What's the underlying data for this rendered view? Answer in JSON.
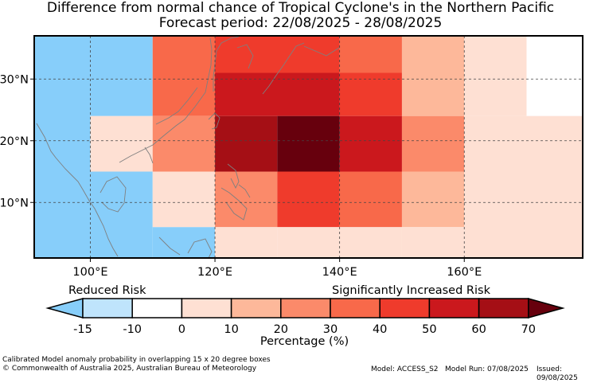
{
  "title_line1": "Difference from normal chance of Tropical Cyclone's in the Northern Pacific",
  "title_line2": "Forecast period: 22/08/2025 - 28/08/2025",
  "map": {
    "lon_range": [
      91,
      179
    ],
    "lat_range": [
      1,
      37
    ],
    "lon_ticks": [
      {
        "value": 100,
        "label": "100°E"
      },
      {
        "value": 120,
        "label": "120°E"
      },
      {
        "value": 140,
        "label": "140°E"
      },
      {
        "value": 160,
        "label": "160°E"
      }
    ],
    "lat_ticks": [
      {
        "value": 10,
        "label": "10°N"
      },
      {
        "value": 20,
        "label": "20°N"
      },
      {
        "value": 30,
        "label": "30°N"
      }
    ],
    "cells_percent": [
      {
        "lon": [
          91,
          100
        ],
        "lat": [
          1,
          37
        ],
        "v": -20
      },
      {
        "lon": [
          100,
          110
        ],
        "lat": [
          24,
          37
        ],
        "v": -20
      },
      {
        "lon": [
          100,
          110
        ],
        "lat": [
          1,
          15
        ],
        "v": -20
      },
      {
        "lon": [
          100,
          110
        ],
        "lat": [
          15,
          24
        ],
        "v": 0
      },
      {
        "lon": [
          110,
          120
        ],
        "lat": [
          24,
          37
        ],
        "v": 35
      },
      {
        "lon": [
          110,
          120
        ],
        "lat": [
          15,
          24
        ],
        "v": 25
      },
      {
        "lon": [
          110,
          120
        ],
        "lat": [
          6,
          15
        ],
        "v": 0
      },
      {
        "lon": [
          110,
          120
        ],
        "lat": [
          1,
          6
        ],
        "v": -20
      },
      {
        "lon": [
          120,
          140
        ],
        "lat": [
          31,
          37
        ],
        "v": 45
      },
      {
        "lon": [
          120,
          140
        ],
        "lat": [
          24,
          31
        ],
        "v": 55
      },
      {
        "lon": [
          120,
          130
        ],
        "lat": [
          15,
          24
        ],
        "v": 65
      },
      {
        "lon": [
          130,
          140
        ],
        "lat": [
          15,
          24
        ],
        "v": 75
      },
      {
        "lon": [
          120,
          130
        ],
        "lat": [
          6,
          15
        ],
        "v": 25
      },
      {
        "lon": [
          120,
          130
        ],
        "lat": [
          1,
          6
        ],
        "v": 0
      },
      {
        "lon": [
          130,
          140
        ],
        "lat": [
          6,
          15
        ],
        "v": 45
      },
      {
        "lon": [
          130,
          140
        ],
        "lat": [
          1,
          6
        ],
        "v": 5
      },
      {
        "lon": [
          140,
          150
        ],
        "lat": [
          31,
          37
        ],
        "v": 35
      },
      {
        "lon": [
          140,
          150
        ],
        "lat": [
          24,
          31
        ],
        "v": 45
      },
      {
        "lon": [
          140,
          150
        ],
        "lat": [
          15,
          24
        ],
        "v": 55
      },
      {
        "lon": [
          140,
          150
        ],
        "lat": [
          6,
          15
        ],
        "v": 35
      },
      {
        "lon": [
          140,
          150
        ],
        "lat": [
          1,
          6
        ],
        "v": 5
      },
      {
        "lon": [
          150,
          160
        ],
        "lat": [
          24,
          37
        ],
        "v": 15
      },
      {
        "lon": [
          150,
          160
        ],
        "lat": [
          15,
          24
        ],
        "v": 25
      },
      {
        "lon": [
          150,
          160
        ],
        "lat": [
          6,
          15
        ],
        "v": 15
      },
      {
        "lon": [
          150,
          160
        ],
        "lat": [
          1,
          6
        ],
        "v": 5
      },
      {
        "lon": [
          160,
          170
        ],
        "lat": [
          24,
          37
        ],
        "v": 0
      },
      {
        "lon": [
          160,
          179
        ],
        "lat": [
          1,
          24
        ],
        "v": 5
      },
      {
        "lon": [
          170,
          179
        ],
        "lat": [
          24,
          37
        ],
        "v": -10
      },
      {
        "lon": [
          170,
          179
        ],
        "lat": [
          15,
          24
        ],
        "v": 0
      }
    ]
  },
  "colorbar": {
    "labels": [
      "-15",
      "-10",
      "0",
      "10",
      "20",
      "30",
      "40",
      "50",
      "60",
      "70"
    ],
    "colors": [
      "#bfe4fc",
      "#ffffff",
      "#fee0d3",
      "#fdb89a",
      "#fb8a6a",
      "#f8694a",
      "#ef3b2c",
      "#cb181d",
      "#a50f15"
    ],
    "under_color": "#87cefa",
    "over_color": "#67000d",
    "low_label": "Reduced Risk",
    "high_label": "Significantly Increased Risk",
    "axis_label": "Percentage (%)"
  },
  "footer": {
    "note": "Calibrated Model anomaly probability in overlapping 15 x 20 degree boxes",
    "copyright": "© Commonwealth of Australia 2025, Australian Bureau of Meteorology",
    "model": "Model: ACCESS_S2",
    "run": "Model Run: 07/08/2025",
    "issued": "Issued: 09/08/2025"
  }
}
